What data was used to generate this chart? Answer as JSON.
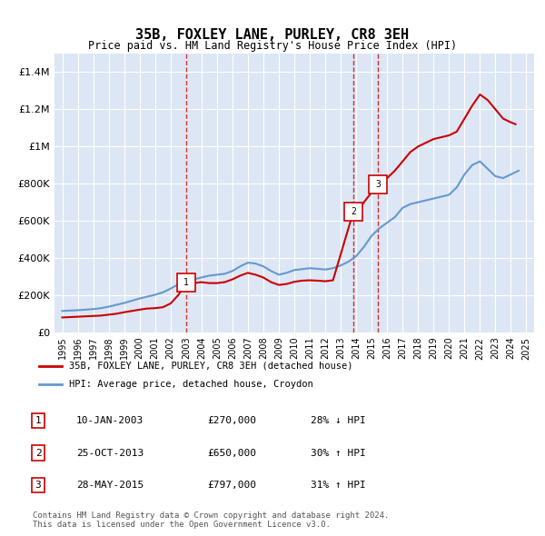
{
  "title": "35B, FOXLEY LANE, PURLEY, CR8 3EH",
  "subtitle": "Price paid vs. HM Land Registry's House Price Index (HPI)",
  "background_color": "#dce6f5",
  "plot_bg_color": "#dce6f5",
  "ylim": [
    0,
    1500000
  ],
  "yticks": [
    0,
    200000,
    400000,
    600000,
    800000,
    1000000,
    1200000,
    1400000
  ],
  "ytick_labels": [
    "£0",
    "£200K",
    "£400K",
    "£600K",
    "£800K",
    "£1M",
    "£1.2M",
    "£1.4M"
  ],
  "xlabel_years": [
    "1995",
    "1996",
    "1997",
    "1998",
    "1999",
    "2000",
    "2001",
    "2002",
    "2003",
    "2004",
    "2005",
    "2006",
    "2007",
    "2008",
    "2009",
    "2010",
    "2011",
    "2012",
    "2013",
    "2014",
    "2015",
    "2016",
    "2017",
    "2018",
    "2019",
    "2020",
    "2021",
    "2022",
    "2023",
    "2024",
    "2025"
  ],
  "hpi_years": [
    1995,
    1995.5,
    1996,
    1996.5,
    1997,
    1997.5,
    1998,
    1998.5,
    1999,
    1999.5,
    2000,
    2000.5,
    2001,
    2001.5,
    2002,
    2002.5,
    2003,
    2003.5,
    2004,
    2004.5,
    2005,
    2005.5,
    2006,
    2006.5,
    2007,
    2007.5,
    2008,
    2008.5,
    2009,
    2009.5,
    2010,
    2010.5,
    2011,
    2011.5,
    2012,
    2012.5,
    2013,
    2013.5,
    2014,
    2014.5,
    2015,
    2015.5,
    2016,
    2016.5,
    2017,
    2017.5,
    2018,
    2018.5,
    2019,
    2019.5,
    2020,
    2020.5,
    2021,
    2021.5,
    2022,
    2022.5,
    2023,
    2023.5,
    2024,
    2024.5
  ],
  "hpi_values": [
    115000,
    117000,
    119000,
    122000,
    125000,
    130000,
    138000,
    148000,
    158000,
    170000,
    182000,
    192000,
    202000,
    215000,
    235000,
    258000,
    275000,
    285000,
    295000,
    305000,
    310000,
    315000,
    330000,
    355000,
    375000,
    370000,
    355000,
    330000,
    310000,
    320000,
    335000,
    340000,
    345000,
    342000,
    338000,
    345000,
    360000,
    380000,
    410000,
    460000,
    520000,
    560000,
    590000,
    620000,
    670000,
    690000,
    700000,
    710000,
    720000,
    730000,
    740000,
    780000,
    850000,
    900000,
    920000,
    880000,
    840000,
    830000,
    850000,
    870000
  ],
  "price_years": [
    1995,
    1995.5,
    1996,
    1996.5,
    1997,
    1997.5,
    1998,
    1998.5,
    1999,
    1999.5,
    2000,
    2000.5,
    2001,
    2001.5,
    2002,
    2002.5,
    2003.03,
    2003.5,
    2004,
    2004.5,
    2005,
    2005.5,
    2006,
    2006.5,
    2007,
    2007.5,
    2008,
    2008.5,
    2009,
    2009.5,
    2010,
    2010.5,
    2011,
    2011.5,
    2012,
    2012.5,
    2013.82,
    2014,
    2014.5,
    2015.41,
    2015.5,
    2016,
    2016.5,
    2017,
    2017.5,
    2018,
    2018.5,
    2019,
    2019.5,
    2020,
    2020.5,
    2021,
    2021.5,
    2022,
    2022.5,
    2023,
    2023.5,
    2024,
    2024.3
  ],
  "price_values": [
    80000,
    82000,
    84000,
    86000,
    88000,
    90000,
    95000,
    100000,
    108000,
    115000,
    122000,
    128000,
    130000,
    135000,
    155000,
    200000,
    270000,
    265000,
    270000,
    265000,
    265000,
    270000,
    285000,
    305000,
    320000,
    310000,
    295000,
    270000,
    255000,
    260000,
    272000,
    278000,
    280000,
    278000,
    275000,
    280000,
    650000,
    640000,
    700000,
    797000,
    790000,
    830000,
    870000,
    920000,
    970000,
    1000000,
    1020000,
    1040000,
    1050000,
    1060000,
    1080000,
    1150000,
    1220000,
    1280000,
    1250000,
    1200000,
    1150000,
    1130000,
    1120000
  ],
  "sale_points": [
    {
      "year": 2003.03,
      "price": 270000,
      "label": "1"
    },
    {
      "year": 2013.82,
      "price": 650000,
      "label": "2"
    },
    {
      "year": 2015.41,
      "price": 797000,
      "label": "3"
    }
  ],
  "vlines": [
    2003.03,
    2013.82,
    2015.41
  ],
  "red_color": "#cc0000",
  "blue_color": "#6699cc",
  "legend_entries": [
    "35B, FOXLEY LANE, PURLEY, CR8 3EH (detached house)",
    "HPI: Average price, detached house, Croydon"
  ],
  "table_rows": [
    {
      "num": "1",
      "date": "10-JAN-2003",
      "price": "£270,000",
      "change": "28% ↓ HPI"
    },
    {
      "num": "2",
      "date": "25-OCT-2013",
      "price": "£650,000",
      "change": "30% ↑ HPI"
    },
    {
      "num": "3",
      "date": "28-MAY-2015",
      "price": "£797,000",
      "change": "31% ↑ HPI"
    }
  ],
  "footer": "Contains HM Land Registry data © Crown copyright and database right 2024.\nThis data is licensed under the Open Government Licence v3.0."
}
